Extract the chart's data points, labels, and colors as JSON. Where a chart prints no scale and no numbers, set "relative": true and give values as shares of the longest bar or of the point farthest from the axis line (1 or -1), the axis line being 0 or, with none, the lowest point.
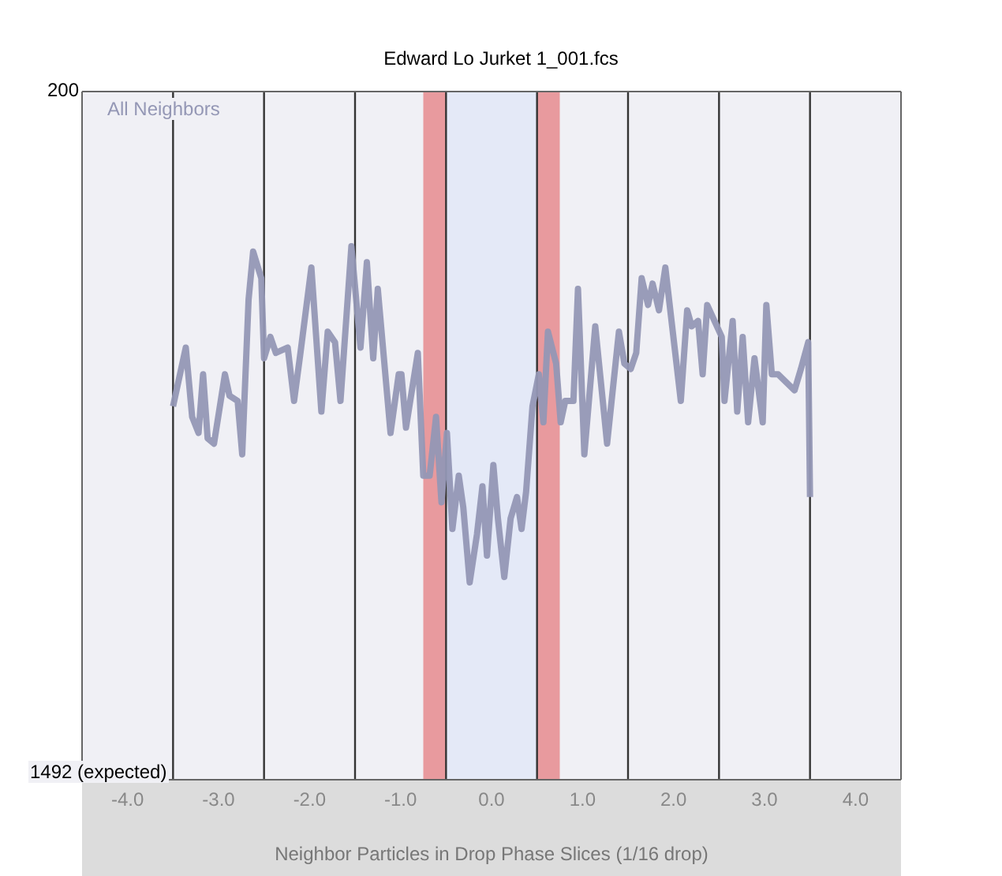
{
  "chart_data": {
    "type": "line",
    "title": "Edward Lo Jurket 1_001.fcs",
    "xlabel": "Neighbor Particles in Drop Phase Slices (1/16 drop)",
    "relative": true,
    "annotations": [
      "200",
      "1492 (expected)"
    ],
    "legend": "top left",
    "marker": "none",
    "line_style": "solid",
    "xlim": [
      -4.5,
      4.5
    ],
    "xticks": [
      {
        "value": -4,
        "label": "-4.0"
      },
      {
        "value": -3,
        "label": "-3.0"
      },
      {
        "value": -2,
        "label": "-2.0"
      },
      {
        "value": -1,
        "label": "-1.0"
      },
      {
        "value": 0,
        "label": "0.0"
      },
      {
        "value": 1,
        "label": "1.0"
      },
      {
        "value": 2,
        "label": "2.0"
      },
      {
        "value": 3,
        "label": "3.0"
      },
      {
        "value": 4,
        "label": "4.0"
      }
    ],
    "ref_lines": [
      {
        "axis": "x",
        "value": -3.5,
        "color": "#333333"
      },
      {
        "axis": "x",
        "value": -2.5,
        "color": "#333333"
      },
      {
        "axis": "x",
        "value": -1.5,
        "color": "#333333"
      },
      {
        "axis": "x",
        "value": -0.5,
        "color": "#333333"
      },
      {
        "axis": "x",
        "value": 0.5,
        "color": "#333333"
      },
      {
        "axis": "x",
        "value": 1.5,
        "color": "#333333"
      },
      {
        "axis": "x",
        "value": 2.5,
        "color": "#333333"
      },
      {
        "axis": "x",
        "value": 3.5,
        "color": "#333333"
      }
    ],
    "bands": [
      {
        "axis": "x",
        "from": -0.75,
        "to": -0.5,
        "color": "#e89a9e"
      },
      {
        "axis": "x",
        "from": -0.5,
        "to": 0.5,
        "color": "#e4e9f7"
      },
      {
        "axis": "x",
        "from": 0.5,
        "to": 0.75,
        "color": "#e89a9e"
      }
    ],
    "series": [
      {
        "name": "All Neighbors",
        "color": "#9497b5",
        "x": [
          -3.5,
          -3.36,
          -3.29,
          -3.22,
          -3.17,
          -3.12,
          -3.05,
          -2.93,
          -2.88,
          -2.79,
          -2.74,
          -2.67,
          -2.62,
          -2.53,
          -2.5,
          -2.43,
          -2.37,
          -2.24,
          -2.17,
          -2.1,
          -1.98,
          -1.87,
          -1.8,
          -1.72,
          -1.66,
          -1.54,
          -1.44,
          -1.37,
          -1.3,
          -1.25,
          -1.11,
          -1.02,
          -0.99,
          -0.94,
          -0.81,
          -0.75,
          -0.68,
          -0.61,
          -0.55,
          -0.49,
          -0.43,
          -0.36,
          -0.31,
          -0.24,
          -0.16,
          -0.1,
          -0.05,
          0.02,
          0.07,
          0.14,
          0.21,
          0.28,
          0.33,
          0.38,
          0.45,
          0.52,
          0.57,
          0.62,
          0.71,
          0.76,
          0.81,
          0.9,
          0.95,
          1.02,
          1.14,
          1.27,
          1.4,
          1.46,
          1.53,
          1.59,
          1.65,
          1.72,
          1.77,
          1.84,
          1.91,
          2.08,
          2.15,
          2.2,
          2.27,
          2.32,
          2.37,
          2.53,
          2.56,
          2.65,
          2.7,
          2.76,
          2.82,
          2.89,
          2.98,
          3.02,
          3.08,
          3.15,
          3.33,
          3.4,
          3.48,
          3.5
        ],
        "values": [
          0.7,
          0.81,
          0.68,
          0.65,
          0.76,
          0.64,
          0.63,
          0.76,
          0.72,
          0.71,
          0.61,
          0.9,
          0.99,
          0.94,
          0.79,
          0.83,
          0.8,
          0.81,
          0.71,
          0.8,
          0.96,
          0.69,
          0.84,
          0.82,
          0.71,
          1,
          0.81,
          0.97,
          0.79,
          0.92,
          0.65,
          0.76,
          0.76,
          0.66,
          0.8,
          0.57,
          0.57,
          0.68,
          0.52,
          0.65,
          0.47,
          0.57,
          0.51,
          0.37,
          0.46,
          0.55,
          0.42,
          0.59,
          0.49,
          0.38,
          0.49,
          0.53,
          0.47,
          0.54,
          0.7,
          0.76,
          0.67,
          0.84,
          0.78,
          0.67,
          0.71,
          0.71,
          0.92,
          0.61,
          0.85,
          0.63,
          0.84,
          0.78,
          0.77,
          0.8,
          0.94,
          0.89,
          0.93,
          0.88,
          0.96,
          0.71,
          0.88,
          0.85,
          0.86,
          0.76,
          0.89,
          0.83,
          0.71,
          0.86,
          0.69,
          0.83,
          0.67,
          0.79,
          0.67,
          0.89,
          0.76,
          0.76,
          0.73,
          0.77,
          0.82,
          0.53
        ]
      }
    ]
  }
}
